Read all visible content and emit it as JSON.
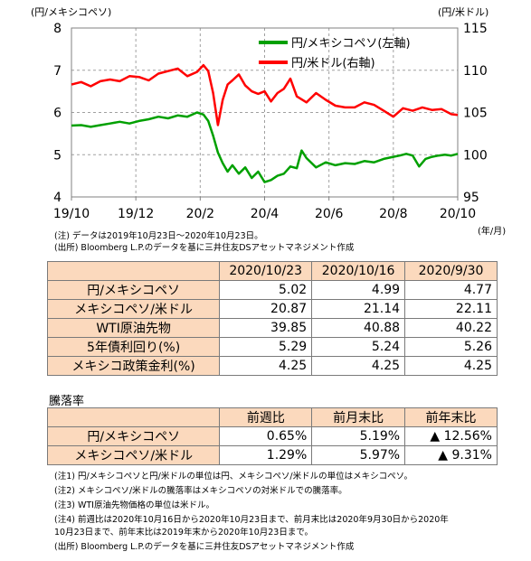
{
  "chart_data": {
    "type": "line",
    "left_axis_title": "(円/メキシコペソ)",
    "right_axis_title": "(円/米ドル)",
    "x_axis_unit": "(年/月)",
    "left_ylim": [
      4,
      8
    ],
    "right_ylim": [
      95,
      115
    ],
    "left_ticks": [
      "4",
      "5",
      "6",
      "7",
      "8"
    ],
    "right_ticks": [
      "95",
      "100",
      "105",
      "110",
      "115"
    ],
    "x_ticks": [
      "19/10",
      "19/12",
      "20/2",
      "20/4",
      "20/6",
      "20/8",
      "20/10"
    ],
    "x_tick_months": [
      0,
      2,
      4,
      6,
      8,
      10,
      12
    ],
    "grid": true,
    "legend_position": "top-right",
    "colors": {
      "mxn": "#00a000",
      "usd": "#ff0000"
    },
    "series": [
      {
        "name": "円/メキシコペソ(左軸)",
        "axis": "left",
        "x": [
          0,
          0.3,
          0.6,
          0.9,
          1.2,
          1.5,
          1.8,
          2.1,
          2.4,
          2.7,
          3.0,
          3.3,
          3.6,
          3.9,
          4.1,
          4.25,
          4.4,
          4.55,
          4.7,
          4.85,
          5.0,
          5.2,
          5.4,
          5.6,
          5.8,
          6.0,
          6.2,
          6.4,
          6.6,
          6.8,
          7.0,
          7.15,
          7.3,
          7.6,
          7.9,
          8.2,
          8.5,
          8.8,
          9.1,
          9.4,
          9.7,
          10.0,
          10.2,
          10.4,
          10.6,
          10.8,
          11.0,
          11.2,
          11.4,
          11.6,
          11.8,
          12.0
        ],
        "values": [
          5.69,
          5.7,
          5.66,
          5.7,
          5.74,
          5.78,
          5.74,
          5.8,
          5.84,
          5.9,
          5.86,
          5.93,
          5.9,
          6.0,
          5.95,
          5.8,
          5.45,
          5.05,
          4.8,
          4.6,
          4.75,
          4.55,
          4.7,
          4.45,
          4.6,
          4.35,
          4.4,
          4.5,
          4.55,
          4.72,
          4.68,
          5.1,
          4.92,
          4.7,
          4.82,
          4.75,
          4.8,
          4.78,
          4.85,
          4.82,
          4.9,
          4.95,
          4.98,
          5.02,
          4.98,
          4.72,
          4.9,
          4.95,
          4.98,
          5.0,
          4.98,
          5.02
        ]
      },
      {
        "name": "円/米ドル(右軸)",
        "axis": "right",
        "x": [
          0,
          0.3,
          0.6,
          0.9,
          1.2,
          1.5,
          1.8,
          2.1,
          2.4,
          2.7,
          3.0,
          3.3,
          3.6,
          3.9,
          4.1,
          4.25,
          4.4,
          4.55,
          4.7,
          4.85,
          5.0,
          5.2,
          5.4,
          5.6,
          5.8,
          6.0,
          6.2,
          6.4,
          6.6,
          6.8,
          7.0,
          7.3,
          7.6,
          7.9,
          8.2,
          8.5,
          8.8,
          9.1,
          9.4,
          9.7,
          10.0,
          10.3,
          10.6,
          10.9,
          11.2,
          11.5,
          11.8,
          12.0
        ],
        "values": [
          108.3,
          108.6,
          108.1,
          108.7,
          108.9,
          108.7,
          109.3,
          109.2,
          108.8,
          109.6,
          109.9,
          110.2,
          109.3,
          109.8,
          110.6,
          109.9,
          107.3,
          103.5,
          106.5,
          108.3,
          108.8,
          109.5,
          108.2,
          107.5,
          107.2,
          107.5,
          106.3,
          107.3,
          107.8,
          109.0,
          106.9,
          106.2,
          107.3,
          106.5,
          105.8,
          105.6,
          105.6,
          106.2,
          105.9,
          105.2,
          104.5,
          105.5,
          105.2,
          105.6,
          105.3,
          105.4,
          104.8,
          104.7
        ]
      }
    ]
  },
  "chart_note": "(注) データは2019年10月23日～2020年10月23日。",
  "chart_source": "(出所) Bloomberg L.P.のデータを基に三井住友DSアセットマネジメント作成",
  "table1": {
    "headers": [
      "2020/10/23",
      "2020/10/16",
      "2020/9/30"
    ],
    "rows": [
      {
        "label": "円/メキシコペソ",
        "values": [
          "5.02",
          "4.99",
          "4.77"
        ]
      },
      {
        "label": "メキシコペソ/米ドル",
        "values": [
          "20.87",
          "21.14",
          "22.11"
        ]
      },
      {
        "label": "WTI原油先物",
        "values": [
          "39.85",
          "40.88",
          "40.22"
        ]
      },
      {
        "label": "5年債利回り(%)",
        "values": [
          "5.29",
          "5.24",
          "5.26"
        ]
      },
      {
        "label": "メキシコ政策金利(%)",
        "values": [
          "4.25",
          "4.25",
          "4.25"
        ]
      }
    ]
  },
  "rates_title": "騰落率",
  "table2": {
    "headers": [
      "前週比",
      "前月末比",
      "前年末比"
    ],
    "rows": [
      {
        "label": "円/メキシコペソ",
        "values": [
          "0.65%",
          "5.19%",
          "▲ 12.56%"
        ]
      },
      {
        "label": "メキシコペソ/米ドル",
        "values": [
          "1.29%",
          "5.97%",
          "▲ 9.31%"
        ]
      }
    ]
  },
  "footnotes": [
    "(注1) 円/メキシコペソと円/米ドルの単位は円、メキシコペソ/米ドルの単位はメキシコペソ。",
    "(注2) メキシコペソ/米ドルの騰落率はメキシコペソの対米ドルでの騰落率。",
    "(注3) WTI原油先物価格の単位は米ドル。",
    "(注4) 前週比は2020年10月16日から2020年10月23日まで、前月末比は2020年9月30日から2020年",
    "        10月23日まで、前年末比は2019年末から2020年10月23日まで。",
    "(出所) Bloomberg L.P.のデータを基に三井住友DSアセットマネジメント作成"
  ]
}
